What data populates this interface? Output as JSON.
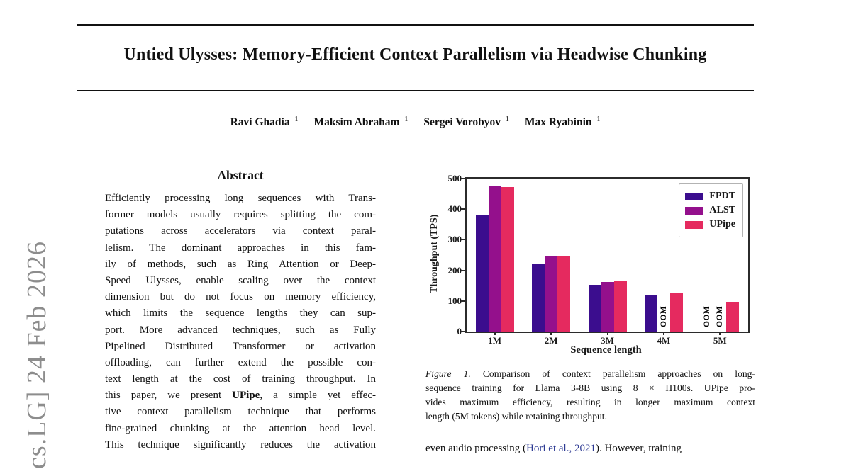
{
  "page": {
    "watermark": "cs.LG]  24 Feb 2026",
    "title": "Untied Ulysses: Memory-Efficient Context Parallelism via Headwise Chunking",
    "authors": [
      {
        "name": "Ravi Ghadia",
        "affiliation_mark": "1"
      },
      {
        "name": "Maksim Abraham",
        "affiliation_mark": "1"
      },
      {
        "name": "Sergei Vorobyov",
        "affiliation_mark": "1"
      },
      {
        "name": "Max Ryabinin",
        "affiliation_mark": "1"
      }
    ],
    "abstract": {
      "heading": "Abstract",
      "bold_terms": [
        "UPipe"
      ],
      "lines": [
        "Efficiently processing long sequences with Trans-",
        "former models usually requires splitting the com-",
        "putations across accelerators via context paral-",
        "lelism.  The dominant approaches in this fam-",
        "ily of methods, such as Ring Attention or Deep-",
        "Speed Ulysses, enable scaling over the context",
        "dimension but do not focus on memory efficiency,",
        "which limits the sequence lengths they can sup-",
        "port.  More advanced techniques, such as Fully",
        "Pipelined Distributed Transformer or activation",
        "offloading, can further extend the possible con-",
        "text length at the cost of training throughput. In",
        "this paper, we present UPipe, a simple yet effec-",
        "tive context parallelism technique that performs",
        "fine-grained chunking at the attention head level.",
        "This technique significantly reduces the activation"
      ]
    },
    "figure_caption": {
      "italic_prefix": "Figure 1.",
      "lines": [
        "Figure 1. Comparison of context parallelism approaches on long-",
        "sequence training for Llama 3-8B using 8 × H100s. UPipe pro-",
        "vides maximum efficiency, resulting in longer maximum context",
        "length (5M tokens) while retaining throughput."
      ]
    },
    "body_text": {
      "segments": [
        {
          "text": "even audio processing (",
          "link": false
        },
        {
          "text": "Hori et al., 2021",
          "link": true
        },
        {
          "text": ").  However, training",
          "link": false
        }
      ]
    }
  },
  "chart_data": {
    "type": "bar",
    "title": "",
    "xlabel": "Sequence length",
    "ylabel": "Throughput (TPS)",
    "categories": [
      "1M",
      "2M",
      "3M",
      "4M",
      "5M"
    ],
    "series": [
      {
        "name": "FPDT",
        "color": "#3b0d8e",
        "values": [
          382,
          220,
          153,
          120,
          null
        ]
      },
      {
        "name": "ALST",
        "color": "#94108c",
        "values": [
          476,
          246,
          161,
          null,
          null
        ]
      },
      {
        "name": "UPipe",
        "color": "#e52a5f",
        "values": [
          472,
          246,
          166,
          126,
          98
        ]
      }
    ],
    "missing_value_label": "OOM",
    "ylim": [
      0,
      500
    ],
    "yticks": [
      0,
      100,
      200,
      300,
      400,
      500
    ],
    "legend_position": "upper right",
    "grid": false,
    "colors": {
      "axis": "#2b2b2b",
      "legend_border": "#b3b3b3"
    }
  }
}
